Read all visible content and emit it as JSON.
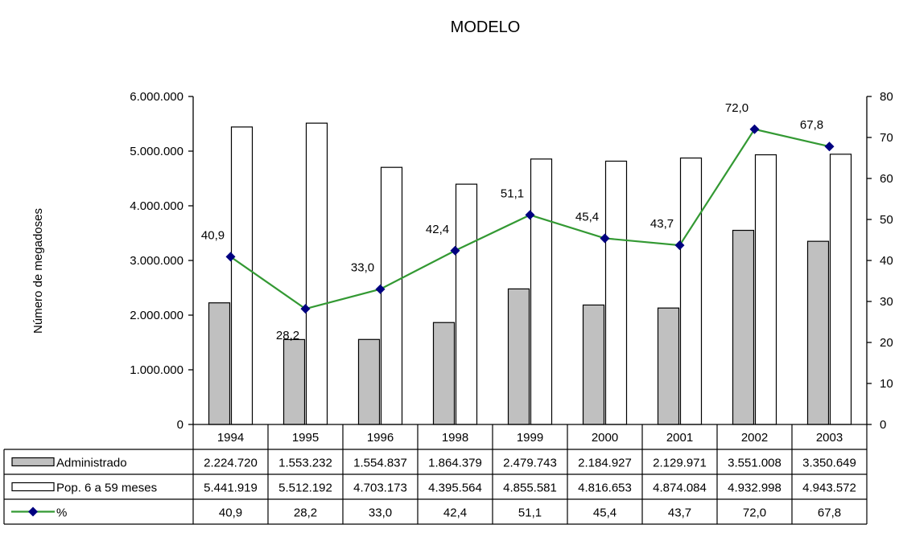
{
  "chart_data": {
    "type": "bar",
    "title": "MODELO",
    "ylabel": "Número de megadoses",
    "categories": [
      "1994",
      "1995",
      "1996",
      "1998",
      "1999",
      "2000",
      "2001",
      "2002",
      "2003"
    ],
    "ylim": [
      0,
      6000000
    ],
    "y_ticks": [
      "0",
      "1.000.000",
      "2.000.000",
      "3.000.000",
      "4.000.000",
      "5.000.000",
      "6.000.000"
    ],
    "y2lim": [
      0,
      80
    ],
    "y2_ticks": [
      "0",
      "10",
      "20",
      "30",
      "40",
      "50",
      "60",
      "70",
      "80"
    ],
    "series": [
      {
        "name": "Administrado",
        "kind": "bar",
        "color": "#c0c0c0",
        "values": [
          2224720,
          1553232,
          1554837,
          1864379,
          2479743,
          2184927,
          2129971,
          3551008,
          3350649
        ],
        "labels": [
          "2.224.720",
          "1.553.232",
          "1.554.837",
          "1.864.379",
          "2.479.743",
          "2.184.927",
          "2.129.971",
          "3.551.008",
          "3.350.649"
        ]
      },
      {
        "name": "Pop. 6 a 59 meses",
        "kind": "bar",
        "color": "#ffffff",
        "values": [
          5441919,
          5512192,
          4703173,
          4395564,
          4855581,
          4816653,
          4874084,
          4932998,
          4943572
        ],
        "labels": [
          "5.441.919",
          "5.512.192",
          "4.703.173",
          "4.395.564",
          "4.855.581",
          "4.816.653",
          "4.874.084",
          "4.932.998",
          "4.943.572"
        ]
      },
      {
        "name": "%",
        "kind": "line",
        "axis": "right",
        "color": "#339933",
        "marker_color": "#000080",
        "values": [
          40.9,
          28.2,
          33.0,
          42.4,
          51.1,
          45.4,
          43.7,
          72.0,
          67.8
        ],
        "labels": [
          "40,9",
          "28,2",
          "33,0",
          "42,4",
          "51,1",
          "45,4",
          "43,7",
          "72,0",
          "67,8"
        ]
      }
    ],
    "legend": "data-table-below"
  }
}
